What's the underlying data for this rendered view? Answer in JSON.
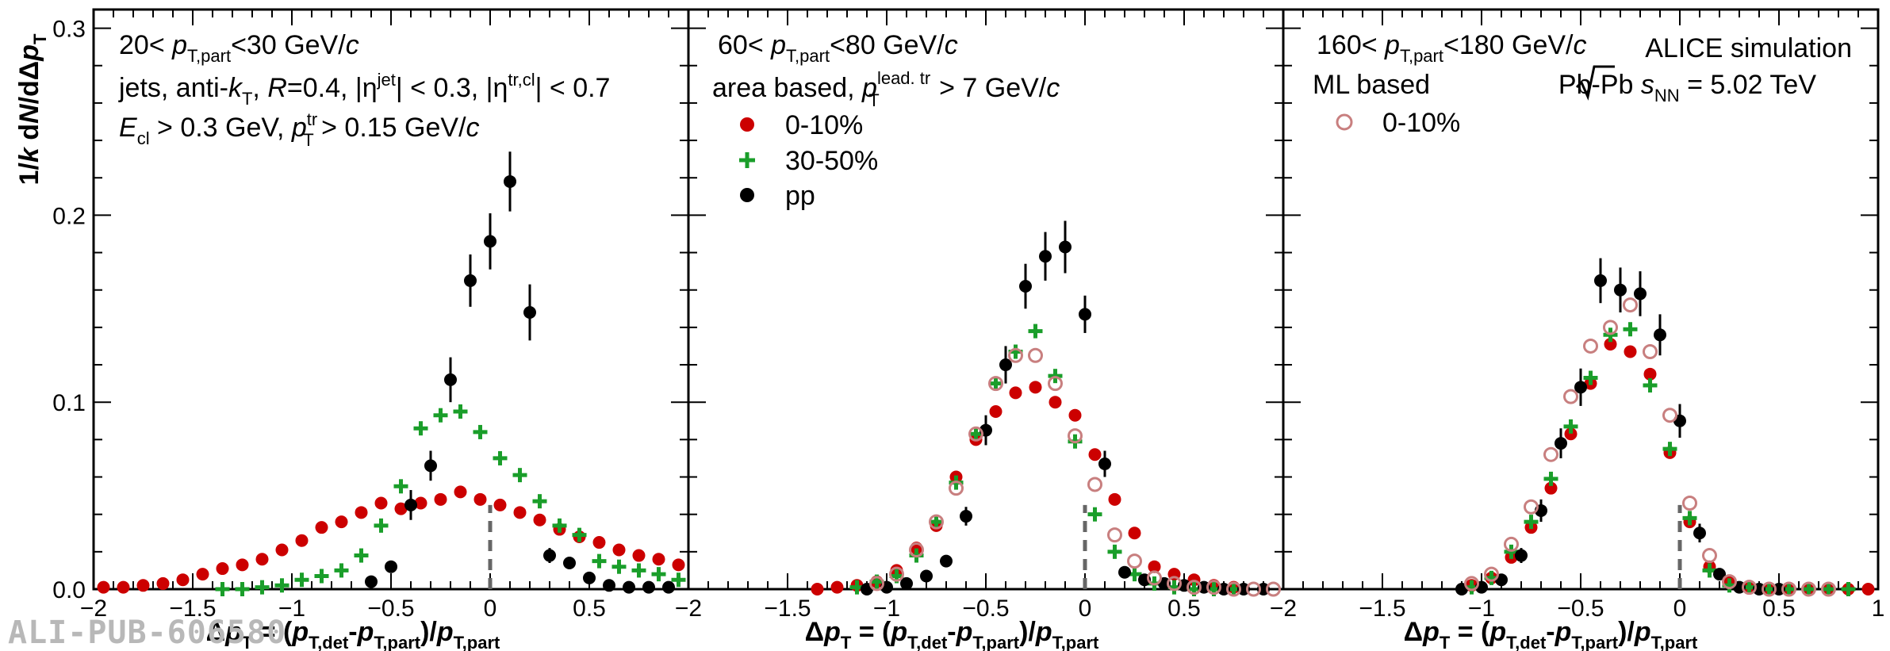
{
  "watermark": "ALI-PUB-606580",
  "y_axis_label": "1/k dN/dΔp_T",
  "x_axis_label": "Δp_T = (p_T,det - p_T,part)/p_T,part",
  "panels_text": {
    "p1": {
      "range": "20< p_T,part <30 GeV/c",
      "line2": "jets, anti-k_T, R=0.4, |η^jet| < 0.3, |η^tr,cl| < 0.7",
      "line3": "E_cl > 0.3 GeV, p_T^tr > 0.15 GeV/c"
    },
    "p2": {
      "range": "60< p_T,part <80 GeV/c",
      "method": "area based, p_T^lead. tr > 7 GeV/c",
      "legend": [
        "0-10%",
        "30-50%",
        "pp"
      ]
    },
    "p3": {
      "range": "160< p_T,part <180 GeV/c",
      "method": "ML based",
      "legend": [
        "0-10%"
      ],
      "collab": "ALICE simulation",
      "system": "Pb-Pb √s_NN = 5.02 TeV"
    }
  },
  "colors": {
    "area_0_10": "#cc0000",
    "area_30_50": "#1a9e2a",
    "pp": "#000000",
    "ml_0_10": "#c87f7f",
    "frame": "#000000",
    "zero_line": "#666666"
  },
  "chart_data": [
    {
      "type": "scatter",
      "title": "20< p_T,part <30 GeV/c",
      "xlabel": "Δp_T = (p_T,det - p_T,part)/p_T,part",
      "ylabel": "1/k dN/dΔp_T",
      "xlim": [
        -2,
        1
      ],
      "ylim": [
        0,
        0.31
      ],
      "xticks": [
        -2,
        -1.5,
        -1,
        -0.5,
        0,
        0.5
      ],
      "yticks": [
        0,
        0.1,
        0.2,
        0.3
      ],
      "series": [
        {
          "name": "0-10%",
          "marker": "filled-circle",
          "color": "#cc0000",
          "x": [
            -1.95,
            -1.85,
            -1.75,
            -1.65,
            -1.55,
            -1.45,
            -1.35,
            -1.25,
            -1.15,
            -1.05,
            -0.95,
            -0.85,
            -0.75,
            -0.65,
            -0.55,
            -0.45,
            -0.35,
            -0.25,
            -0.15,
            -0.05,
            0.05,
            0.15,
            0.25,
            0.35,
            0.45,
            0.55,
            0.65,
            0.75,
            0.85,
            0.95
          ],
          "y": [
            0.001,
            0.001,
            0.002,
            0.003,
            0.005,
            0.008,
            0.011,
            0.013,
            0.016,
            0.021,
            0.026,
            0.033,
            0.036,
            0.041,
            0.046,
            0.043,
            0.046,
            0.048,
            0.052,
            0.048,
            0.045,
            0.041,
            0.037,
            0.032,
            0.028,
            0.025,
            0.021,
            0.018,
            0.016,
            0.013
          ]
        },
        {
          "name": "30-50%",
          "marker": "plus",
          "color": "#1a9e2a",
          "x": [
            -1.35,
            -1.25,
            -1.15,
            -1.05,
            -0.95,
            -0.85,
            -0.75,
            -0.65,
            -0.55,
            -0.45,
            -0.35,
            -0.25,
            -0.15,
            -0.05,
            0.05,
            0.15,
            0.25,
            0.35,
            0.45,
            0.55,
            0.65,
            0.75,
            0.85,
            0.95
          ],
          "y": [
            0.0,
            0.0,
            0.001,
            0.002,
            0.005,
            0.007,
            0.01,
            0.018,
            0.034,
            0.055,
            0.086,
            0.093,
            0.095,
            0.084,
            0.07,
            0.061,
            0.047,
            0.034,
            0.029,
            0.015,
            0.012,
            0.01,
            0.008,
            0.005
          ]
        },
        {
          "name": "pp",
          "marker": "filled-circle",
          "color": "#000000",
          "x": [
            -0.6,
            -0.5,
            -0.4,
            -0.3,
            -0.2,
            -0.1,
            0.0,
            0.1,
            0.2,
            0.3,
            0.4,
            0.5,
            0.6,
            0.7,
            0.8,
            0.9
          ],
          "y": [
            0.004,
            0.012,
            0.045,
            0.066,
            0.112,
            0.165,
            0.186,
            0.218,
            0.148,
            0.018,
            0.014,
            0.006,
            0.002,
            0.001,
            0.001,
            0.001
          ],
          "err": [
            0.003,
            0.003,
            0.008,
            0.008,
            0.012,
            0.014,
            0.015,
            0.016,
            0.015,
            0.004,
            0.003,
            0.002,
            0.001,
            0.001,
            0.001,
            0.001
          ]
        }
      ]
    },
    {
      "type": "scatter",
      "title": "60< p_T,part <80 GeV/c",
      "xlabel": "Δp_T = (p_T,det - p_T,part)/p_T,part",
      "ylabel": "1/k dN/dΔp_T",
      "xlim": [
        -2,
        1
      ],
      "ylim": [
        0,
        0.31
      ],
      "xticks": [
        -2,
        -1.5,
        -1,
        -0.5,
        0,
        0.5
      ],
      "yticks": [
        0,
        0.1,
        0.2,
        0.3
      ],
      "series": [
        {
          "name": "0-10%",
          "marker": "filled-circle",
          "color": "#cc0000",
          "x": [
            -1.35,
            -1.25,
            -1.15,
            -1.05,
            -0.95,
            -0.85,
            -0.75,
            -0.65,
            -0.55,
            -0.45,
            -0.35,
            -0.25,
            -0.15,
            -0.05,
            0.05,
            0.15,
            0.25,
            0.35,
            0.45,
            0.55,
            0.65,
            0.75
          ],
          "y": [
            0.0,
            0.001,
            0.002,
            0.004,
            0.01,
            0.022,
            0.034,
            0.06,
            0.08,
            0.095,
            0.105,
            0.108,
            0.1,
            0.093,
            0.072,
            0.048,
            0.03,
            0.012,
            0.008,
            0.005,
            0.002,
            0.001
          ]
        },
        {
          "name": "30-50%",
          "marker": "plus",
          "color": "#1a9e2a",
          "x": [
            -1.15,
            -1.05,
            -0.95,
            -0.85,
            -0.75,
            -0.65,
            -0.55,
            -0.45,
            -0.35,
            -0.25,
            -0.15,
            -0.05,
            0.05,
            0.15,
            0.25,
            0.35,
            0.45,
            0.55,
            0.65,
            0.75
          ],
          "y": [
            0.001,
            0.004,
            0.007,
            0.018,
            0.036,
            0.057,
            0.083,
            0.11,
            0.127,
            0.138,
            0.114,
            0.079,
            0.04,
            0.02,
            0.008,
            0.003,
            0.001,
            0.0,
            0.0,
            0.0
          ]
        },
        {
          "name": "pp",
          "marker": "filled-circle",
          "color": "#000000",
          "x": [
            -1.1,
            -1.0,
            -0.9,
            -0.8,
            -0.7,
            -0.6,
            -0.5,
            -0.4,
            -0.3,
            -0.2,
            -0.1,
            0.0,
            0.1,
            0.2,
            0.3,
            0.4,
            0.5,
            0.6,
            0.7,
            0.8,
            0.9
          ],
          "y": [
            0.0,
            0.001,
            0.003,
            0.007,
            0.015,
            0.039,
            0.085,
            0.12,
            0.162,
            0.178,
            0.183,
            0.147,
            0.067,
            0.009,
            0.005,
            0.003,
            0.002,
            0.001,
            0.0,
            0.0,
            0.0
          ],
          "err": [
            0.001,
            0.001,
            0.002,
            0.002,
            0.003,
            0.005,
            0.008,
            0.01,
            0.012,
            0.013,
            0.014,
            0.01,
            0.007,
            0.003,
            0.002,
            0.001,
            0.001,
            0.001,
            0.0,
            0.0,
            0.0
          ]
        },
        {
          "name": "0-10% ML",
          "marker": "open-circle",
          "color": "#c87f7f",
          "x": [
            -1.05,
            -0.95,
            -0.85,
            -0.75,
            -0.65,
            -0.55,
            -0.45,
            -0.35,
            -0.25,
            -0.15,
            -0.05,
            0.05,
            0.15,
            0.25,
            0.35,
            0.45,
            0.55,
            0.65,
            0.75,
            0.85,
            0.95
          ],
          "y": [
            0.003,
            0.008,
            0.021,
            0.036,
            0.054,
            0.083,
            0.11,
            0.125,
            0.125,
            0.11,
            0.082,
            0.056,
            0.029,
            0.015,
            0.006,
            0.003,
            0.001,
            0.001,
            0.0,
            0.0,
            0.0
          ]
        }
      ]
    },
    {
      "type": "scatter",
      "title": "160< p_T,part <180 GeV/c",
      "xlabel": "Δp_T = (p_T,det - p_T,part)/p_T,part",
      "ylabel": "1/k dN/dΔp_T",
      "xlim": [
        -2,
        1
      ],
      "ylim": [
        0,
        0.31
      ],
      "xticks": [
        -2,
        -1.5,
        -1,
        -0.5,
        0,
        0.5,
        1
      ],
      "yticks": [
        0,
        0.1,
        0.2,
        0.3
      ],
      "series": [
        {
          "name": "0-10%",
          "marker": "filled-circle",
          "color": "#cc0000",
          "x": [
            -1.05,
            -0.95,
            -0.85,
            -0.75,
            -0.65,
            -0.55,
            -0.45,
            -0.35,
            -0.25,
            -0.15,
            -0.05,
            0.05,
            0.15,
            0.25,
            0.35,
            0.45,
            0.55,
            0.65,
            0.75,
            0.85,
            0.95
          ],
          "y": [
            0.002,
            0.006,
            0.017,
            0.033,
            0.054,
            0.083,
            0.11,
            0.131,
            0.127,
            0.115,
            0.073,
            0.036,
            0.012,
            0.004,
            0.001,
            0.0,
            0.0,
            0.0,
            0.0,
            0.0,
            0.0
          ]
        },
        {
          "name": "30-50%",
          "marker": "plus",
          "color": "#1a9e2a",
          "x": [
            -1.05,
            -0.95,
            -0.85,
            -0.75,
            -0.65,
            -0.55,
            -0.45,
            -0.35,
            -0.25,
            -0.15,
            -0.05,
            0.05,
            0.15,
            0.25,
            0.35,
            0.45,
            0.55,
            0.65,
            0.75,
            0.85
          ],
          "y": [
            0.001,
            0.006,
            0.02,
            0.036,
            0.059,
            0.087,
            0.113,
            0.136,
            0.139,
            0.109,
            0.075,
            0.038,
            0.01,
            0.002,
            0.001,
            0.0,
            0.0,
            0.0,
            0.0,
            0.0
          ]
        },
        {
          "name": "pp",
          "marker": "filled-circle",
          "color": "#000000",
          "x": [
            -1.1,
            -1.0,
            -0.9,
            -0.8,
            -0.7,
            -0.6,
            -0.5,
            -0.4,
            -0.3,
            -0.2,
            -0.1,
            0.0,
            0.1,
            0.2,
            0.3,
            0.4,
            0.5
          ],
          "y": [
            0.0,
            0.001,
            0.005,
            0.018,
            0.042,
            0.078,
            0.108,
            0.165,
            0.16,
            0.158,
            0.136,
            0.09,
            0.03,
            0.008,
            0.001,
            0.0,
            0.0
          ],
          "err": [
            0.001,
            0.001,
            0.002,
            0.004,
            0.006,
            0.008,
            0.01,
            0.012,
            0.012,
            0.012,
            0.011,
            0.009,
            0.005,
            0.003,
            0.001,
            0.0,
            0.0
          ]
        },
        {
          "name": "0-10% ML",
          "marker": "open-circle",
          "color": "#c87f7f",
          "x": [
            -1.05,
            -0.95,
            -0.85,
            -0.75,
            -0.65,
            -0.55,
            -0.45,
            -0.35,
            -0.25,
            -0.15,
            -0.05,
            0.05,
            0.15,
            0.25,
            0.35,
            0.45,
            0.55,
            0.65,
            0.75
          ],
          "y": [
            0.003,
            0.008,
            0.024,
            0.044,
            0.072,
            0.103,
            0.13,
            0.14,
            0.152,
            0.127,
            0.093,
            0.046,
            0.018,
            0.004,
            0.001,
            0.0,
            0.0,
            0.0,
            0.0
          ]
        }
      ]
    }
  ]
}
